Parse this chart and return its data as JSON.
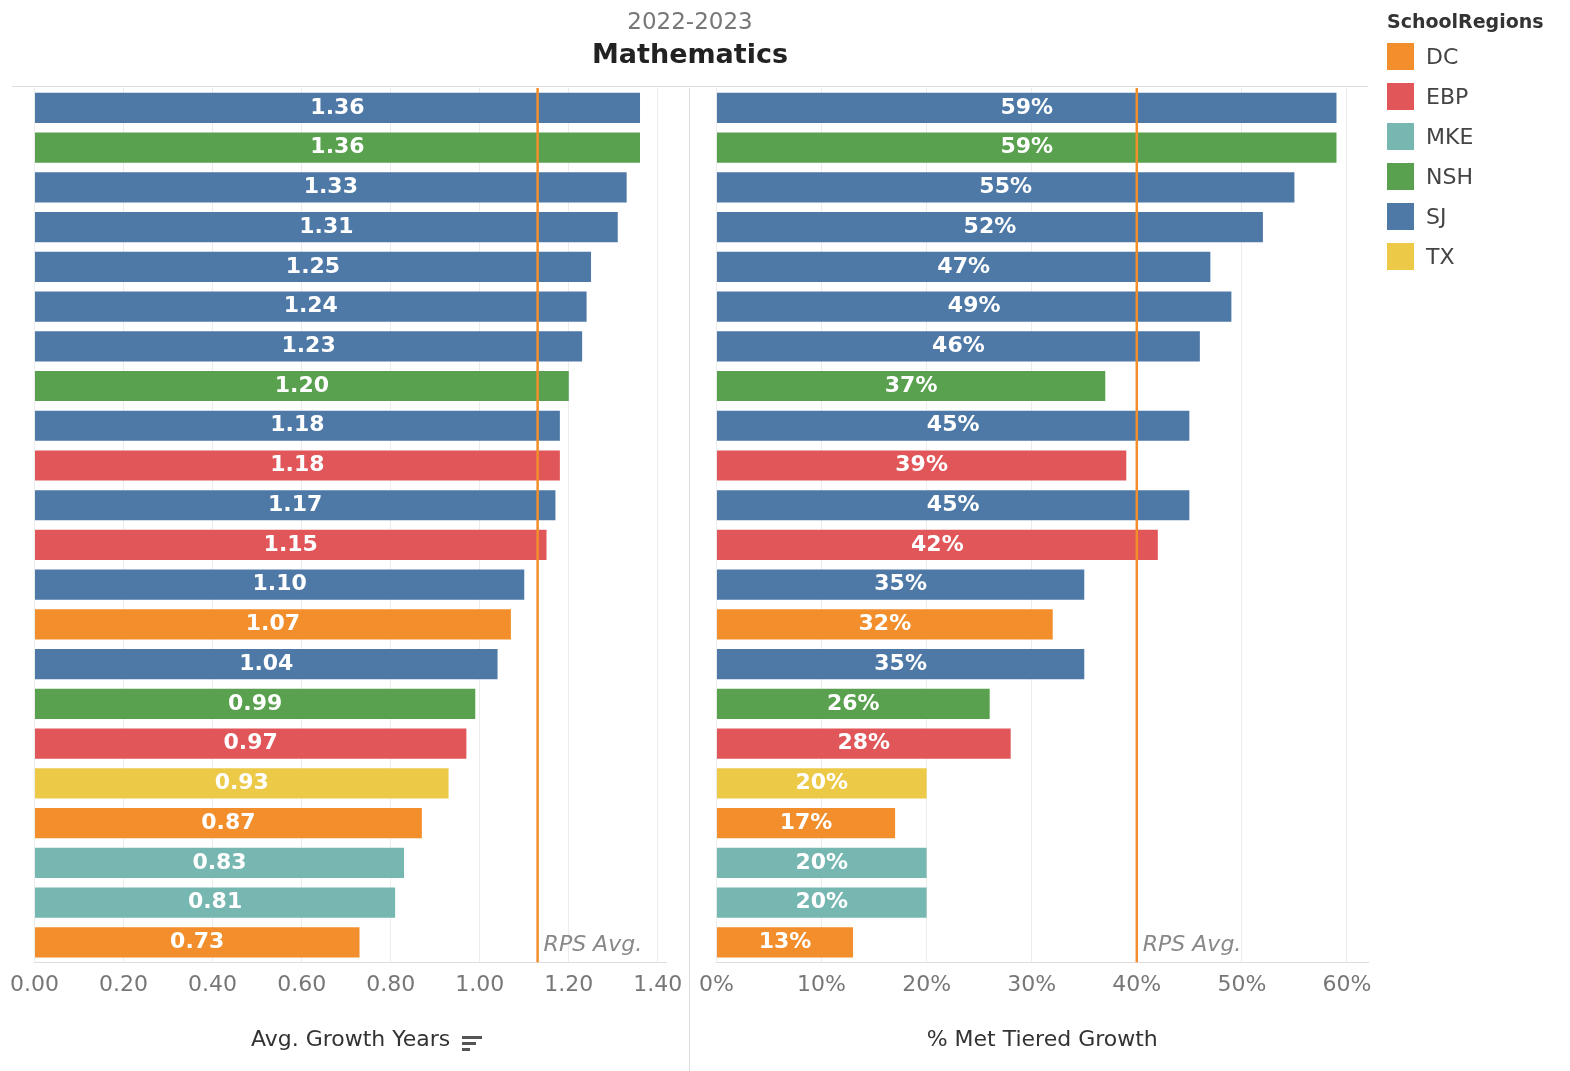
{
  "chart_data": [
    {
      "type": "bar",
      "orientation": "horizontal",
      "title": "Mathematics",
      "subtitle": "2022-2023",
      "xlabel": "Avg. Growth Years",
      "categories": [
        null,
        null,
        null,
        null,
        null,
        null,
        null,
        null,
        null,
        null,
        null,
        null,
        null,
        null,
        null,
        null,
        null,
        null,
        null,
        null,
        null,
        null
      ],
      "series": [
        {
          "color": "#f28e2b",
          "values": [
            null,
            null,
            null,
            null,
            null,
            null,
            null,
            null,
            null,
            null,
            null,
            null,
            null,
            1.07,
            null,
            null,
            null,
            null,
            0.87,
            null,
            null,
            0.73
          ],
          "value_labels": [
            null,
            null,
            null,
            null,
            null,
            null,
            null,
            null,
            null,
            null,
            null,
            null,
            null,
            "1.07",
            null,
            null,
            null,
            null,
            "0.87",
            null,
            null,
            "0.73"
          ]
        },
        {
          "color": "#e15759",
          "values": [
            null,
            null,
            null,
            null,
            null,
            null,
            null,
            null,
            null,
            1.18,
            null,
            1.15,
            null,
            null,
            null,
            null,
            0.97,
            null,
            null,
            null,
            null,
            null
          ],
          "value_labels": [
            null,
            null,
            null,
            null,
            null,
            null,
            null,
            null,
            null,
            "1.18",
            null,
            "1.15",
            null,
            null,
            null,
            null,
            "0.97",
            null,
            null,
            null,
            null,
            null
          ]
        },
        {
          "color": "#76b7b2",
          "values": [
            null,
            null,
            null,
            null,
            null,
            null,
            null,
            null,
            null,
            null,
            null,
            null,
            null,
            null,
            null,
            null,
            null,
            null,
            null,
            0.83,
            0.81,
            null
          ],
          "value_labels": [
            null,
            null,
            null,
            null,
            null,
            null,
            null,
            null,
            null,
            null,
            null,
            null,
            null,
            null,
            null,
            null,
            null,
            null,
            null,
            "0.83",
            "0.81",
            null
          ]
        },
        {
          "color": "#59a14f",
          "values": [
            null,
            1.36,
            null,
            null,
            null,
            null,
            null,
            1.2,
            null,
            null,
            null,
            null,
            null,
            null,
            null,
            0.99,
            null,
            null,
            null,
            null,
            null,
            null
          ],
          "value_labels": [
            null,
            "1.36",
            null,
            null,
            null,
            null,
            null,
            "1.20",
            null,
            null,
            null,
            null,
            null,
            null,
            null,
            "0.99",
            null,
            null,
            null,
            null,
            null,
            null
          ]
        },
        {
          "color": "#4e79a7",
          "values": [
            1.36,
            null,
            1.33,
            1.31,
            1.25,
            1.24,
            1.23,
            null,
            1.18,
            null,
            1.17,
            null,
            1.1,
            null,
            1.04,
            null,
            null,
            null,
            null,
            null,
            null,
            null
          ],
          "value_labels": [
            "1.36",
            null,
            "1.33",
            "1.31",
            "1.25",
            "1.24",
            "1.23",
            null,
            "1.18",
            null,
            "1.17",
            null,
            "1.10",
            null,
            "1.04",
            null,
            null,
            null,
            null,
            null,
            null,
            null
          ]
        },
        {
          "color": "#edc948",
          "values": [
            null,
            null,
            null,
            null,
            null,
            null,
            null,
            null,
            null,
            null,
            null,
            null,
            null,
            null,
            null,
            null,
            null,
            0.93,
            null,
            null,
            null,
            null
          ],
          "value_labels": [
            null,
            null,
            null,
            null,
            null,
            null,
            null,
            null,
            null,
            null,
            null,
            null,
            null,
            null,
            null,
            null,
            null,
            "0.93",
            null,
            null,
            null,
            null
          ]
        }
      ],
      "xlim": [
        0,
        1.42
      ],
      "xticks": [
        {
          "value": 0,
          "label": "0.00"
        },
        {
          "value": 0.2,
          "label": "0.20"
        },
        {
          "value": 0.4,
          "label": "0.40"
        },
        {
          "value": 0.6,
          "label": "0.60"
        },
        {
          "value": 0.8,
          "label": "0.80"
        },
        {
          "value": 1,
          "label": "1.00"
        },
        {
          "value": 1.2,
          "label": "1.20"
        },
        {
          "value": 1.4,
          "label": "1.40"
        }
      ],
      "grid": "x",
      "ref_lines": [
        {
          "axis": "x",
          "value": 1.13,
          "label": "RPS Avg.",
          "color": "#f28e2b"
        }
      ]
    },
    {
      "type": "bar",
      "orientation": "horizontal",
      "xlabel": "% Met Tiered Growth",
      "legend": "right",
      "legend_title": "SchoolRegions",
      "categories": [
        null,
        null,
        null,
        null,
        null,
        null,
        null,
        null,
        null,
        null,
        null,
        null,
        null,
        null,
        null,
        null,
        null,
        null,
        null,
        null,
        null,
        null
      ],
      "series": [
        {
          "name": "DC",
          "color": "#f28e2b",
          "values": [
            null,
            null,
            null,
            null,
            null,
            null,
            null,
            null,
            null,
            null,
            null,
            null,
            null,
            32,
            null,
            null,
            null,
            null,
            17,
            null,
            null,
            13
          ],
          "value_labels": [
            null,
            null,
            null,
            null,
            null,
            null,
            null,
            null,
            null,
            null,
            null,
            null,
            null,
            "32%",
            null,
            null,
            null,
            null,
            "17%",
            null,
            null,
            "13%"
          ]
        },
        {
          "name": "EBP",
          "color": "#e15759",
          "values": [
            null,
            null,
            null,
            null,
            null,
            null,
            null,
            null,
            null,
            39,
            null,
            42,
            null,
            null,
            null,
            null,
            28,
            null,
            null,
            null,
            null,
            null
          ],
          "value_labels": [
            null,
            null,
            null,
            null,
            null,
            null,
            null,
            null,
            null,
            "39%",
            null,
            "42%",
            null,
            null,
            null,
            null,
            "28%",
            null,
            null,
            null,
            null,
            null
          ]
        },
        {
          "name": "MKE",
          "color": "#76b7b2",
          "values": [
            null,
            null,
            null,
            null,
            null,
            null,
            null,
            null,
            null,
            null,
            null,
            null,
            null,
            null,
            null,
            null,
            null,
            null,
            null,
            20,
            20,
            null
          ],
          "value_labels": [
            null,
            null,
            null,
            null,
            null,
            null,
            null,
            null,
            null,
            null,
            null,
            null,
            null,
            null,
            null,
            null,
            null,
            null,
            null,
            "20%",
            "20%",
            null
          ]
        },
        {
          "name": "NSH",
          "color": "#59a14f",
          "values": [
            null,
            59,
            null,
            null,
            null,
            null,
            null,
            37,
            null,
            null,
            null,
            null,
            null,
            null,
            null,
            26,
            null,
            null,
            null,
            null,
            null,
            null
          ],
          "value_labels": [
            null,
            "59%",
            null,
            null,
            null,
            null,
            null,
            "37%",
            null,
            null,
            null,
            null,
            null,
            null,
            null,
            "26%",
            null,
            null,
            null,
            null,
            null,
            null
          ]
        },
        {
          "name": "SJ",
          "color": "#4e79a7",
          "values": [
            59,
            null,
            55,
            52,
            47,
            49,
            46,
            null,
            45,
            null,
            45,
            null,
            35,
            null,
            35,
            null,
            null,
            null,
            null,
            null,
            null,
            null
          ],
          "value_labels": [
            "59%",
            null,
            "55%",
            "52%",
            "47%",
            "49%",
            "46%",
            null,
            "45%",
            null,
            "45%",
            null,
            "35%",
            null,
            "35%",
            null,
            null,
            null,
            null,
            null,
            null,
            null
          ]
        },
        {
          "name": "TX",
          "color": "#edc948",
          "values": [
            null,
            null,
            null,
            null,
            null,
            null,
            null,
            null,
            null,
            null,
            null,
            null,
            null,
            null,
            null,
            null,
            null,
            20,
            null,
            null,
            null,
            null
          ],
          "value_labels": [
            null,
            null,
            null,
            null,
            null,
            null,
            null,
            null,
            null,
            null,
            null,
            null,
            null,
            null,
            null,
            null,
            null,
            "20%",
            null,
            null,
            null,
            null
          ]
        }
      ],
      "xlim": [
        0,
        62
      ],
      "xticks": [
        {
          "value": 0,
          "label": "0%"
        },
        {
          "value": 10,
          "label": "10%"
        },
        {
          "value": 20,
          "label": "20%"
        },
        {
          "value": 30,
          "label": "30%"
        },
        {
          "value": 40,
          "label": "40%"
        },
        {
          "value": 50,
          "label": "50%"
        },
        {
          "value": 60,
          "label": "60%"
        }
      ],
      "grid": "x",
      "ref_lines": [
        {
          "axis": "x",
          "value": 40,
          "label": "RPS Avg.",
          "color": "#f28e2b"
        }
      ]
    }
  ]
}
